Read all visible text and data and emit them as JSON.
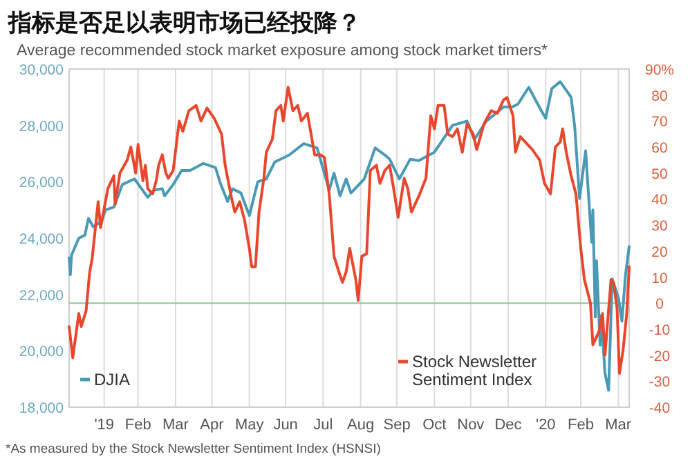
{
  "chart_data": {
    "type": "line",
    "title": "指标是否足以表明市场已经投降？",
    "subtitle": "Average recommended stock market exposure among stock market timers*",
    "xlim": [
      "2019-01-02",
      "2020-04-09"
    ],
    "xticks": [
      {
        "value": "2019-01-31",
        "label": "'19"
      },
      {
        "value": "2019-02-28",
        "label": "Feb"
      },
      {
        "value": "2019-03-31",
        "label": "Mar"
      },
      {
        "value": "2019-04-30",
        "label": "Apr"
      },
      {
        "value": "2019-05-31",
        "label": "May"
      },
      {
        "value": "2019-06-30",
        "label": "Jun"
      },
      {
        "value": "2019-07-31",
        "label": "Jul"
      },
      {
        "value": "2019-08-31",
        "label": "Aug"
      },
      {
        "value": "2019-09-30",
        "label": "Sep"
      },
      {
        "value": "2019-10-31",
        "label": "Oct"
      },
      {
        "value": "2019-11-30",
        "label": "Nov"
      },
      {
        "value": "2019-12-31",
        "label": "Dec"
      },
      {
        "value": "2020-01-31",
        "label": "'20"
      },
      {
        "value": "2020-02-29",
        "label": "Feb"
      },
      {
        "value": "2020-03-31",
        "label": "Mar"
      }
    ],
    "ylim": [
      18000,
      30000
    ],
    "yticks": [
      {
        "value": 18000,
        "label": "18,000"
      },
      {
        "value": 20000,
        "label": "20,000"
      },
      {
        "value": 22000,
        "label": "22,000"
      },
      {
        "value": 24000,
        "label": "24,000"
      },
      {
        "value": 26000,
        "label": "26,000"
      },
      {
        "value": 28000,
        "label": "28,000"
      },
      {
        "value": 30000,
        "label": "30,000"
      }
    ],
    "y2lim": [
      -40,
      90
    ],
    "y2ticks": [
      -40,
      -30,
      -20,
      -10,
      0,
      10,
      20,
      30,
      40,
      50,
      60,
      70,
      80,
      {
        "value": 90,
        "label": "90%"
      }
    ],
    "grid": "x",
    "legend": "bottom",
    "ref_lines": [
      {
        "axis": "y2",
        "value": 0,
        "color": "#8cc79a"
      }
    ],
    "series": [
      {
        "name": "DJIA",
        "color": "#4a9ab6",
        "axis": "y",
        "x": [
          "2019-01-02",
          "2019-01-03",
          "2019-01-04",
          "2019-01-10",
          "2019-01-15",
          "2019-01-18",
          "2019-01-22",
          "2019-01-29",
          "2019-02-01",
          "2019-02-08",
          "2019-02-15",
          "2019-02-25",
          "2019-03-08",
          "2019-03-13",
          "2019-03-20",
          "2019-03-22",
          "2019-03-29",
          "2019-04-05",
          "2019-04-12",
          "2019-04-23",
          "2019-05-03",
          "2019-05-07",
          "2019-05-13",
          "2019-05-17",
          "2019-05-24",
          "2019-05-31",
          "2019-06-07",
          "2019-06-14",
          "2019-06-21",
          "2019-07-03",
          "2019-07-15",
          "2019-07-26",
          "2019-08-05",
          "2019-08-09",
          "2019-08-14",
          "2019-08-19",
          "2019-08-23",
          "2019-09-03",
          "2019-09-12",
          "2019-09-20",
          "2019-09-24",
          "2019-10-02",
          "2019-10-11",
          "2019-10-18",
          "2019-10-31",
          "2019-11-15",
          "2019-11-27",
          "2019-12-03",
          "2019-12-13",
          "2019-12-27",
          "2020-01-03",
          "2020-01-08",
          "2020-01-17",
          "2020-01-27",
          "2020-01-31",
          "2020-02-05",
          "2020-02-12",
          "2020-02-21",
          "2020-02-24",
          "2020-02-28",
          "2020-03-04",
          "2020-03-09",
          "2020-03-10",
          "2020-03-12",
          "2020-03-13",
          "2020-03-16",
          "2020-03-17",
          "2020-03-20",
          "2020-03-23",
          "2020-03-26",
          "2020-03-31",
          "2020-04-03",
          "2020-04-06",
          "2020-04-09"
        ],
        "values": [
          23300,
          22700,
          23400,
          24000,
          24100,
          24700,
          24400,
          24600,
          25000,
          25100,
          25900,
          26100,
          25450,
          25700,
          25750,
          25500,
          25900,
          26400,
          26400,
          26650,
          26500,
          25950,
          25300,
          25750,
          25600,
          24800,
          26000,
          26100,
          26700,
          26950,
          27350,
          27200,
          25700,
          26300,
          25500,
          26100,
          25600,
          26100,
          27200,
          26950,
          26800,
          26100,
          26800,
          26750,
          27050,
          28000,
          28150,
          27500,
          28150,
          28650,
          28650,
          28750,
          29350,
          28550,
          28250,
          29300,
          29550,
          29000,
          27950,
          25400,
          27100,
          23850,
          25000,
          21200,
          23200,
          20200,
          21250,
          19200,
          18600,
          22550,
          21900,
          21050,
          22700,
          23700
        ]
      },
      {
        "name": "Stock Newsletter Sentiment Index",
        "color": "#e8472e",
        "axis": "y2",
        "x": [
          "2019-01-02",
          "2019-01-05",
          "2019-01-10",
          "2019-01-12",
          "2019-01-16",
          "2019-01-19",
          "2019-01-21",
          "2019-01-26",
          "2019-01-28",
          "2019-02-03",
          "2019-02-08",
          "2019-02-09",
          "2019-02-13",
          "2019-02-19",
          "2019-02-22",
          "2019-02-26",
          "2019-02-28",
          "2019-03-04",
          "2019-03-06",
          "2019-03-08",
          "2019-03-12",
          "2019-03-15",
          "2019-03-17",
          "2019-03-20",
          "2019-03-23",
          "2019-03-25",
          "2019-03-29",
          "2019-04-03",
          "2019-04-06",
          "2019-04-11",
          "2019-04-17",
          "2019-04-21",
          "2019-04-26",
          "2019-05-02",
          "2019-05-08",
          "2019-05-11",
          "2019-05-16",
          "2019-05-19",
          "2019-05-23",
          "2019-05-27",
          "2019-05-31",
          "2019-06-02",
          "2019-06-05",
          "2019-06-08",
          "2019-06-12",
          "2019-06-14",
          "2019-06-19",
          "2019-06-22",
          "2019-06-26",
          "2019-06-28",
          "2019-07-02",
          "2019-07-06",
          "2019-07-10",
          "2019-07-13",
          "2019-07-18",
          "2019-07-21",
          "2019-07-24",
          "2019-07-29",
          "2019-08-01",
          "2019-08-05",
          "2019-08-09",
          "2019-08-13",
          "2019-08-16",
          "2019-08-19",
          "2019-08-22",
          "2019-08-27",
          "2019-08-29",
          "2019-09-01",
          "2019-09-05",
          "2019-09-08",
          "2019-09-13",
          "2019-09-16",
          "2019-09-20",
          "2019-09-24",
          "2019-09-28",
          "2019-10-01",
          "2019-10-06",
          "2019-10-09",
          "2019-10-12",
          "2019-10-18",
          "2019-10-24",
          "2019-10-28",
          "2019-10-31",
          "2019-11-03",
          "2019-11-08",
          "2019-11-11",
          "2019-11-15",
          "2019-11-19",
          "2019-11-23",
          "2019-11-27",
          "2019-12-02",
          "2019-12-05",
          "2019-12-11",
          "2019-12-17",
          "2019-12-22",
          "2019-12-27",
          "2019-12-30",
          "2020-01-04",
          "2020-01-06",
          "2020-01-10",
          "2020-01-14",
          "2020-01-20",
          "2020-01-26",
          "2020-01-30",
          "2020-02-04",
          "2020-02-08",
          "2020-02-12",
          "2020-02-14",
          "2020-02-17",
          "2020-02-21",
          "2020-02-25",
          "2020-02-29",
          "2020-03-03",
          "2020-03-08",
          "2020-03-10",
          "2020-03-15",
          "2020-03-18",
          "2020-03-20",
          "2020-03-25",
          "2020-03-27",
          "2020-03-30",
          "2020-04-01",
          "2020-04-04",
          "2020-04-07",
          "2020-04-09"
        ],
        "values": [
          -9,
          -21,
          -4,
          -9,
          -3,
          12,
          17,
          39,
          29,
          44,
          49,
          38,
          50,
          55,
          60,
          50,
          61,
          47,
          53,
          44,
          42,
          47,
          53,
          57,
          50,
          48,
          51,
          70,
          66,
          74,
          76,
          70,
          75,
          71,
          65,
          53,
          41,
          35,
          39,
          32,
          21,
          14,
          14,
          35,
          48,
          58,
          63,
          74,
          76,
          70,
          83,
          74,
          76,
          70,
          73,
          65,
          57,
          57,
          56,
          42,
          18,
          12,
          8,
          12,
          21,
          9,
          1,
          18,
          19,
          51,
          53,
          46,
          51,
          53,
          42,
          33,
          48,
          44,
          35,
          41,
          48,
          72,
          67,
          76,
          76,
          65,
          64,
          67,
          58,
          69,
          65,
          59,
          69,
          74,
          73,
          78,
          79,
          72,
          58,
          64,
          62,
          59,
          55,
          46,
          42,
          60,
          62,
          67,
          58,
          49,
          42,
          21,
          9,
          0,
          -16,
          -11,
          -4,
          -20,
          9,
          8,
          -2,
          -27,
          -18,
          -4,
          14
        ]
      }
    ],
    "annotations": [
      "*As measured by the Stock Newsletter Sentiment Index (HSNSI)"
    ]
  }
}
